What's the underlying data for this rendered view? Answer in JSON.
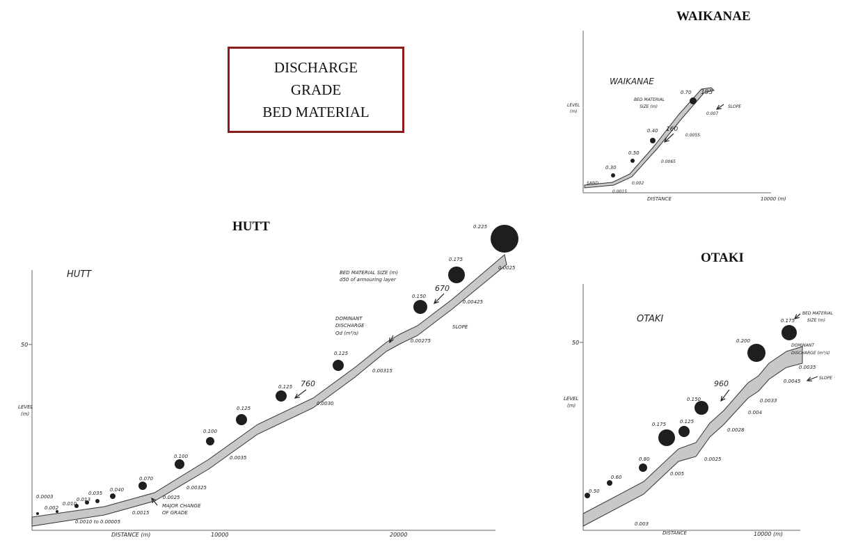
{
  "box": {
    "lines": [
      "DISCHARGE",
      "GRADE",
      "BED MATERIAL"
    ]
  },
  "titles": {
    "hutt": "HUTT",
    "waikanae": "WAIKANAE",
    "otaki": "OTAKI"
  },
  "colors": {
    "box_border": "#8b1a1a",
    "band_fill": "#c8c8c8",
    "dot": "#1e1e1e"
  },
  "hutt": {
    "name": "HUTT",
    "ylabel": "LEVEL\n(m)",
    "y_tick": "50",
    "xlabel": "DISTANCE  (m)",
    "x_ticks": [
      "10000",
      "20000"
    ],
    "note_material": [
      "BED MATERIAL SIZE (m)",
      "d50 of armouring layer"
    ],
    "note_discharge": [
      "DOMINANT",
      "DISCHARGE",
      "Qd (m³/s)"
    ],
    "note_slope": "SLOPE",
    "note_grade": [
      "MAJOR CHANGE",
      "OF GRADE"
    ],
    "discharges": [
      "670",
      "760"
    ],
    "sizes": [
      "0.0003",
      "0.002",
      "0.010",
      "0.013",
      "0.035",
      "0.040",
      "0.070",
      "0.100",
      "0.100",
      "0.125",
      "0.125",
      "0.125",
      "0.150",
      "0.175",
      "0.225"
    ],
    "slopes": [
      "0.0010 to 0.00005",
      "0.0015",
      "0.0025",
      "0.00325",
      "0.0035",
      "0.0030",
      "0.00315",
      "0.00275",
      "0.00425",
      "0.0025"
    ]
  },
  "waikanae": {
    "name": "WAIKANAE",
    "ylabel": "LEVEL\n(m)",
    "xlabel": "DISTANCE",
    "x_ticks": [
      "10000 (m)"
    ],
    "note_material": [
      "BED MATERIAL",
      "SIZE (m)"
    ],
    "note_slope": "SLOPE",
    "note_sand": "SAND",
    "discharges": [
      "160",
      "195"
    ],
    "sizes": [
      "0.30",
      "0.50",
      "0.40",
      "0.70"
    ],
    "slopes": [
      "0.0015",
      "0.002",
      "0.0065",
      "0.0055",
      "0.007"
    ]
  },
  "otaki": {
    "name": "OTAKI",
    "ylabel": "LEVEL\n(m)",
    "y_tick": "50",
    "xlabel": "DISTANCE",
    "x_ticks": [
      "10000 (m)"
    ],
    "note_material": [
      "BED MATERIAL",
      "SIZE (m)"
    ],
    "note_discharge": [
      "DOMINANT",
      "DISCHARGE (m³/s)"
    ],
    "note_slope": "SLOPE",
    "discharges": [
      "960"
    ],
    "sizes": [
      "0.50",
      "0.60",
      "0.80",
      "0.175",
      "0.125",
      "0.150",
      "0.200",
      "0.175"
    ],
    "slopes": [
      "0.003",
      "0.005",
      "0.0025",
      "0.0028",
      "0.004",
      "0.0033",
      "0.0045",
      "0.0035"
    ]
  }
}
